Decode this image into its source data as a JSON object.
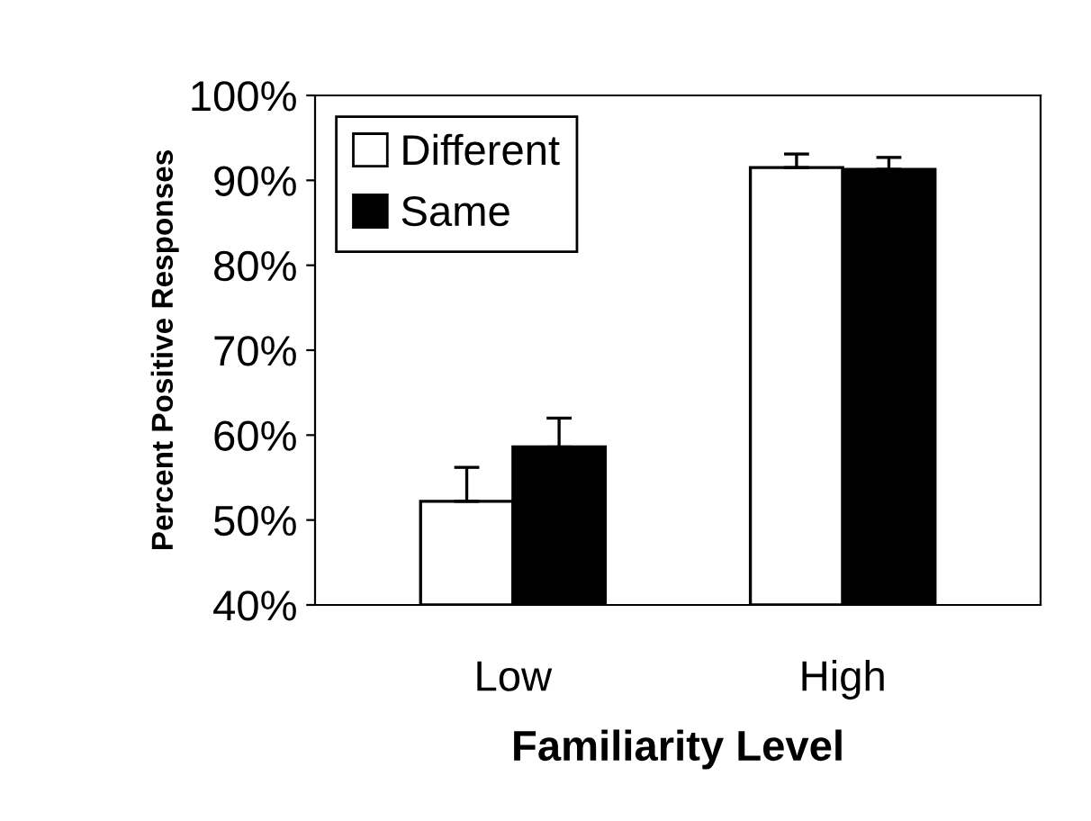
{
  "chart_data": {
    "type": "bar",
    "xlabel": "Familiarity Level",
    "ylabel": "Percent Positive Responses",
    "categories": [
      "Low",
      "High"
    ],
    "series": [
      {
        "name": "Different",
        "color": "#ffffff",
        "values": [
          52.2,
          91.5
        ],
        "errors": [
          [
            52.2,
            56.2
          ],
          [
            91.5,
            93.1
          ]
        ]
      },
      {
        "name": "Same",
        "color": "#000000",
        "values": [
          58.6,
          91.3
        ],
        "errors": [
          [
            58.6,
            62.0
          ],
          [
            91.3,
            92.7
          ]
        ]
      }
    ],
    "ylim": [
      40,
      100
    ],
    "yticks": [
      {
        "value": 40,
        "label": "40%"
      },
      {
        "value": 50,
        "label": "50%"
      },
      {
        "value": 60,
        "label": "60%"
      },
      {
        "value": 70,
        "label": "70%"
      },
      {
        "value": 80,
        "label": "80%"
      },
      {
        "value": 90,
        "label": "90%"
      },
      {
        "value": 100,
        "label": "100%"
      }
    ],
    "legend": "top left",
    "grid": false
  }
}
